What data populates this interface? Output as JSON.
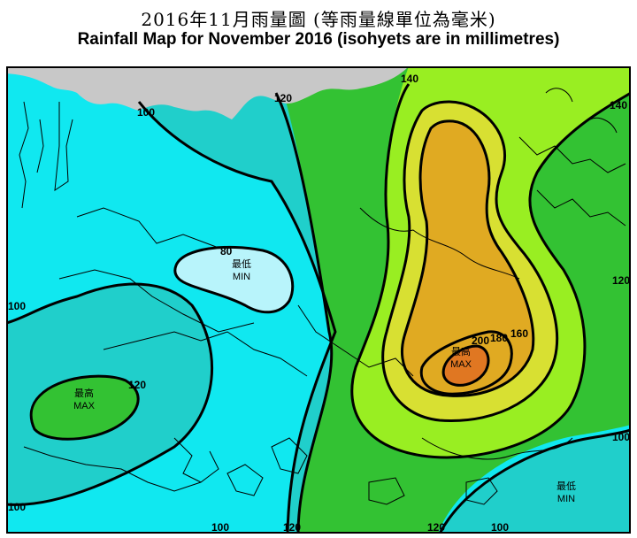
{
  "title": {
    "zh": "2016年11月雨量圖 (等雨量線單位為毫米)",
    "en": "Rainfall Map for November 2016 (isohyets are in millimetres)"
  },
  "colors": {
    "land": "#c8c8c8",
    "lt80": "#b8f4fb",
    "r80_100": "#10e8f0",
    "r100_120": "#20cfcb",
    "r120_140": "#33c233",
    "r140_160": "#99ee22",
    "r160_180": "#d8e032",
    "r180_200": "#e0aa22",
    "r200_plus": "#e07722",
    "isohyet": "#000000",
    "coast": "#000000"
  },
  "labels": {
    "c100_top": "100",
    "c120_top": "120",
    "c140_top": "140",
    "c140_right": "140",
    "c120_right": "120",
    "c100_right": "100",
    "c100_left": "100",
    "c100_left_bottom": "100",
    "c80": "80",
    "c120_left": "120",
    "c160": "160",
    "c180": "180",
    "c200": "200",
    "c100_bottom": "100",
    "c120_bottom_a": "120",
    "c120_bottom_b": "120",
    "c100_bottom_b": "100",
    "min_zh": "最低",
    "min_en": "MIN",
    "max_zh": "最高",
    "max_en": "MAX",
    "max2_zh": "最高",
    "max2_en": "MAX",
    "min2_zh": "最低",
    "min2_en": "MIN"
  }
}
